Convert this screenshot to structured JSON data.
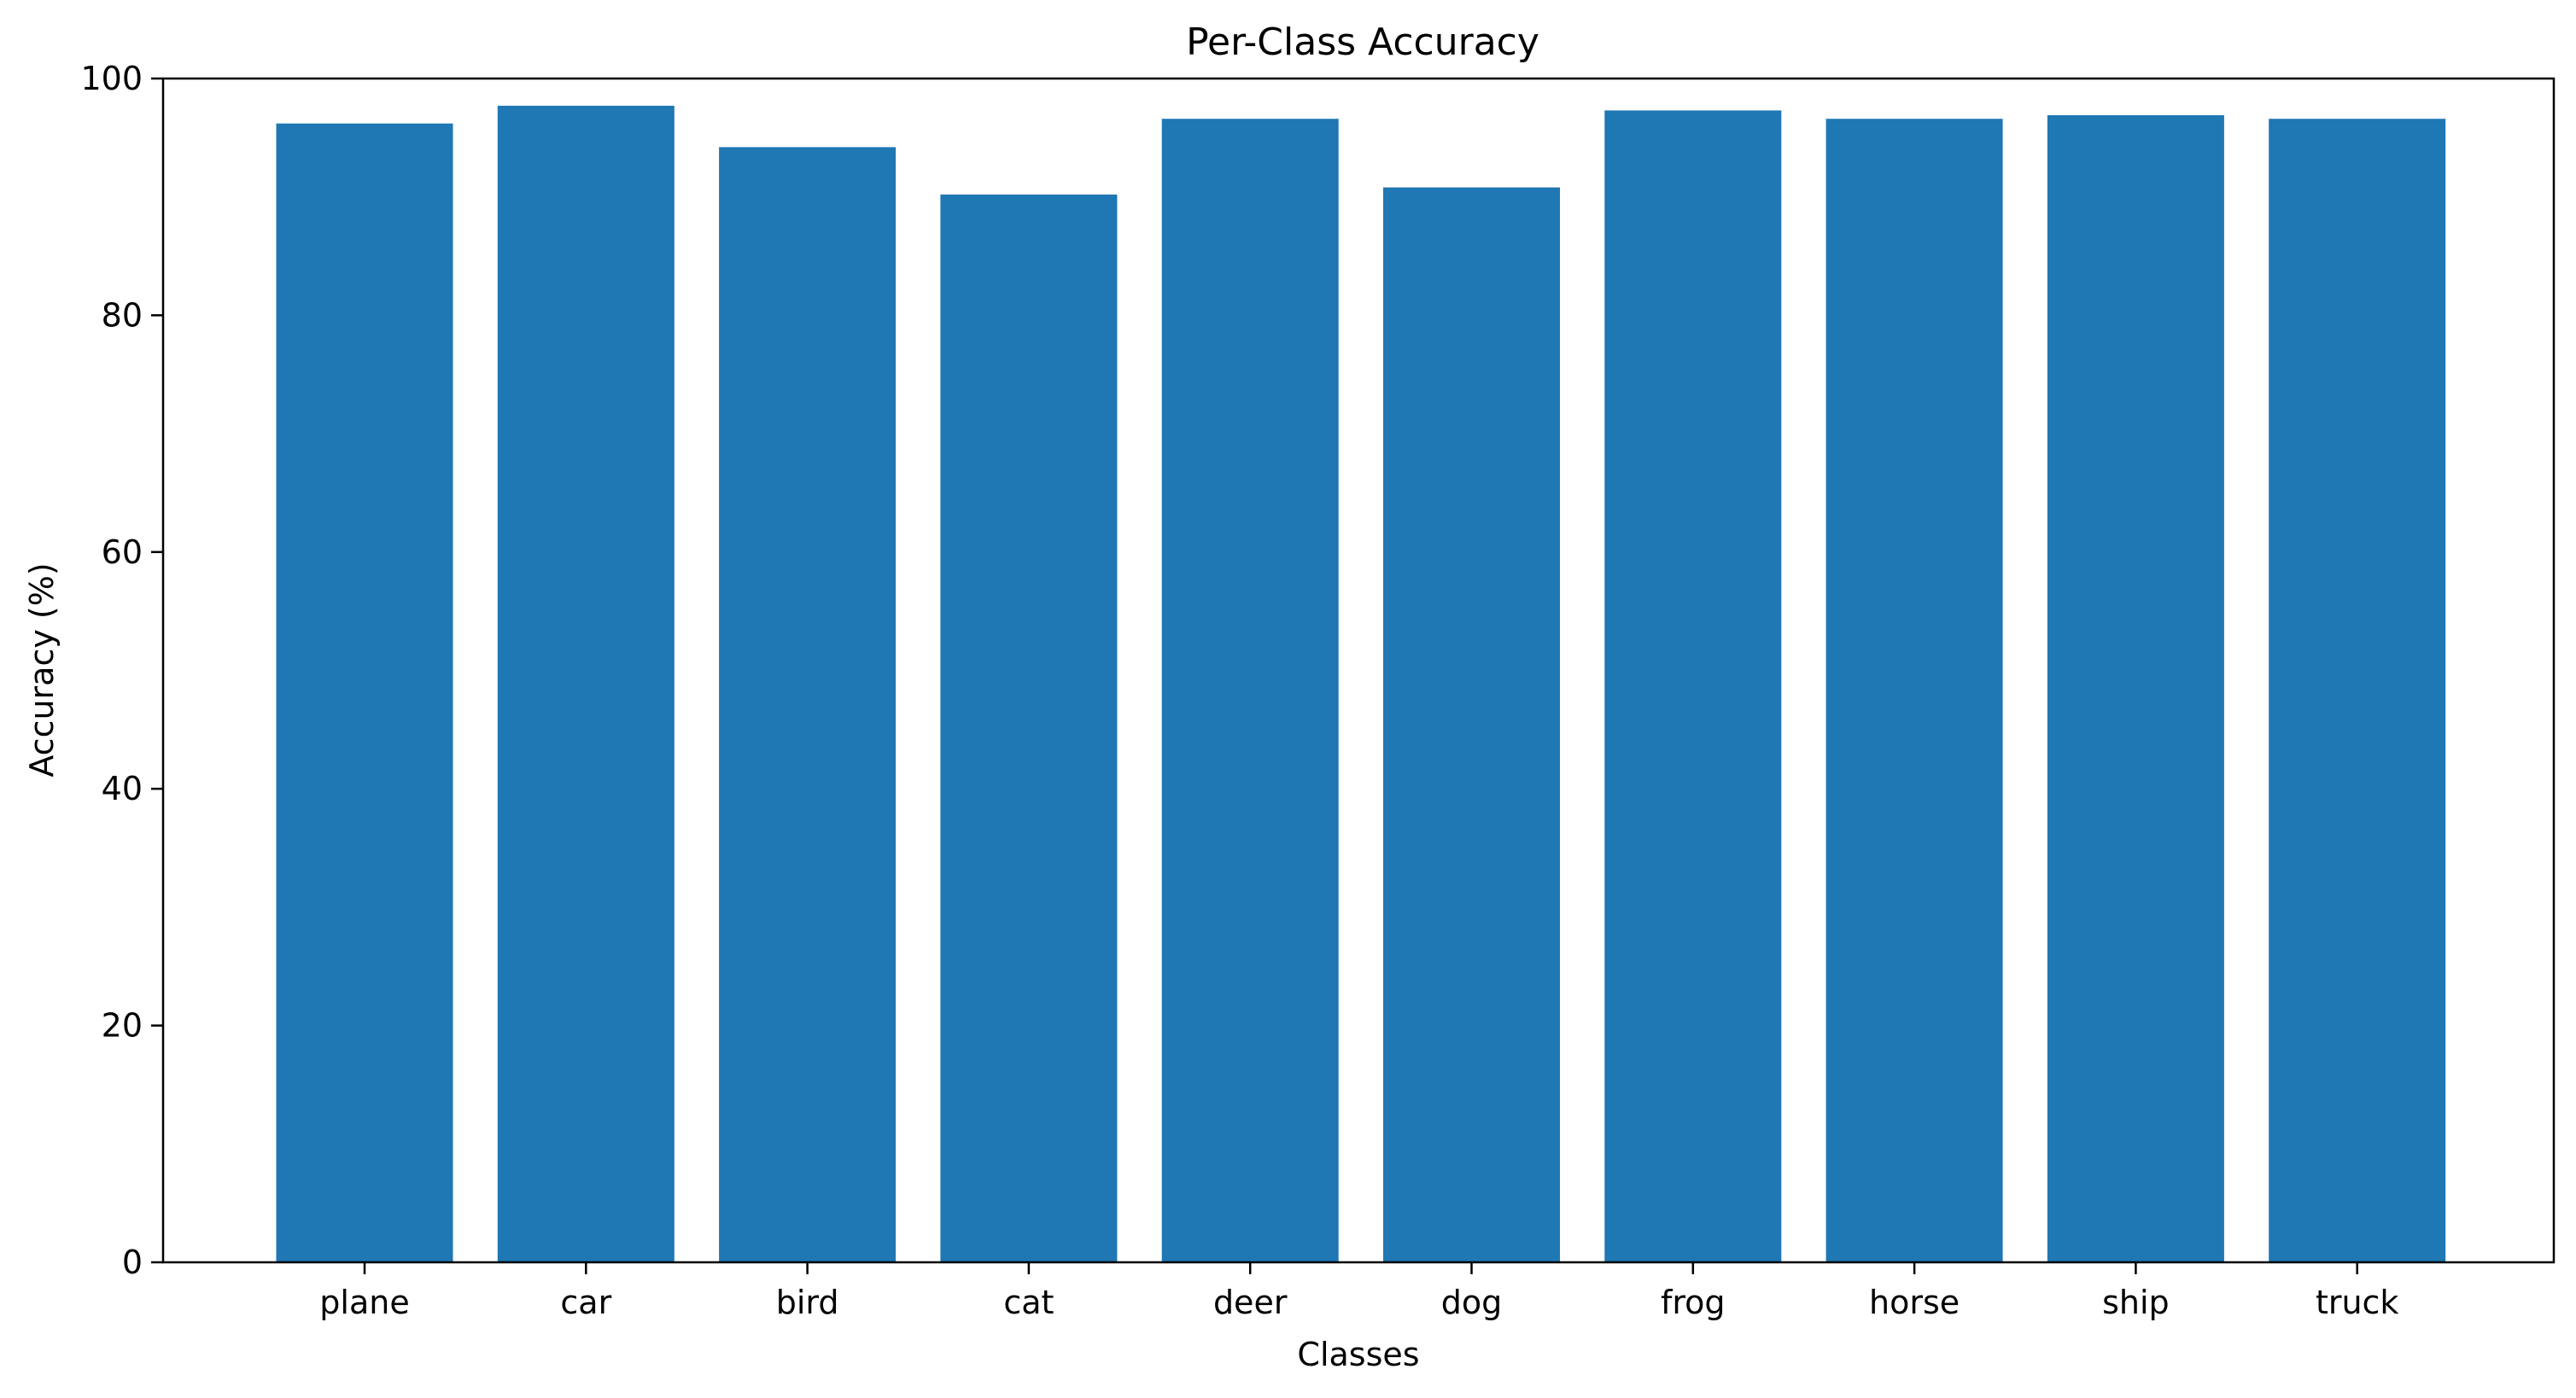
{
  "chart_data": {
    "type": "bar",
    "title": "Per-Class Accuracy",
    "xlabel": "Classes",
    "ylabel": "Accuracy (%)",
    "categories": [
      "plane",
      "car",
      "bird",
      "cat",
      "deer",
      "dog",
      "frog",
      "horse",
      "ship",
      "truck"
    ],
    "values": [
      96.2,
      97.7,
      94.2,
      90.2,
      96.6,
      90.8,
      97.3,
      96.6,
      96.9,
      96.6
    ],
    "ylim": [
      0,
      100
    ],
    "yticks": [
      0,
      20,
      40,
      60,
      80,
      100
    ],
    "grid": false,
    "bar_color": "#1f77b4"
  }
}
